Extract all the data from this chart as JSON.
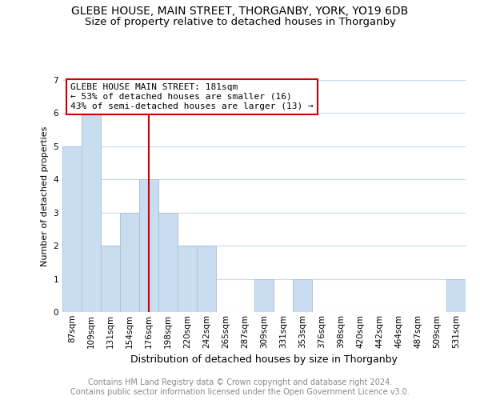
{
  "title": "GLEBE HOUSE, MAIN STREET, THORGANBY, YORK, YO19 6DB",
  "subtitle": "Size of property relative to detached houses in Thorganby",
  "xlabel": "Distribution of detached houses by size in Thorganby",
  "ylabel": "Number of detached properties",
  "categories": [
    "87sqm",
    "109sqm",
    "131sqm",
    "154sqm",
    "176sqm",
    "198sqm",
    "220sqm",
    "242sqm",
    "265sqm",
    "287sqm",
    "309sqm",
    "331sqm",
    "353sqm",
    "376sqm",
    "398sqm",
    "420sqm",
    "442sqm",
    "464sqm",
    "487sqm",
    "509sqm",
    "531sqm"
  ],
  "values": [
    5,
    6,
    2,
    3,
    4,
    3,
    2,
    2,
    0,
    0,
    1,
    0,
    1,
    0,
    0,
    0,
    0,
    0,
    0,
    0,
    1
  ],
  "bar_color": "#c9ddf0",
  "bar_edge_color": "#aac4dc",
  "vline_x_index": 4,
  "vline_color": "#cc0000",
  "annotation_text": "GLEBE HOUSE MAIN STREET: 181sqm\n← 53% of detached houses are smaller (16)\n43% of semi-detached houses are larger (13) →",
  "annotation_box_color": "#ffffff",
  "annotation_box_edge": "#cc0000",
  "ylim": [
    0,
    7
  ],
  "yticks": [
    0,
    1,
    2,
    3,
    4,
    5,
    6,
    7
  ],
  "footer_line1": "Contains HM Land Registry data © Crown copyright and database right 2024.",
  "footer_line2": "Contains public sector information licensed under the Open Government Licence v3.0.",
  "background_color": "#ffffff",
  "grid_color": "#c8daf0",
  "title_fontsize": 10,
  "subtitle_fontsize": 9.5,
  "xlabel_fontsize": 9,
  "ylabel_fontsize": 8,
  "tick_fontsize": 7.5,
  "annotation_fontsize": 8,
  "footer_fontsize": 7
}
